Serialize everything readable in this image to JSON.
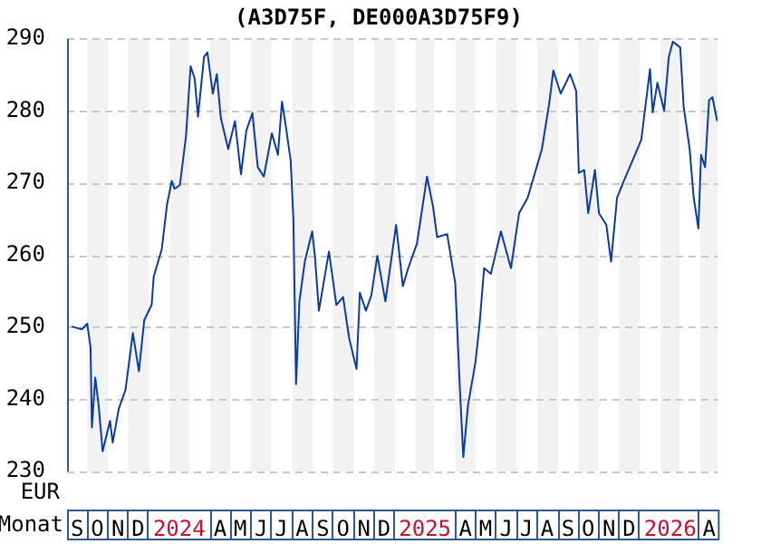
{
  "chart_data": {
    "type": "line",
    "title": "(A3D75F, DE000A3D75F9)",
    "xlabel": "Monat",
    "ylabel": "EUR",
    "x": [
      "2023-09-08",
      "2023-09-23",
      "2023-10-01",
      "2023-10-06",
      "2023-10-08",
      "2023-10-13",
      "2023-10-18",
      "2023-10-24",
      "2023-11-04",
      "2023-11-08",
      "2023-11-17",
      "2023-11-27",
      "2023-12-08",
      "2023-12-17",
      "2023-12-25",
      "2024-01-05",
      "2024-01-08",
      "2024-01-20",
      "2024-01-28",
      "2024-02-04",
      "2024-02-08",
      "2024-02-16",
      "2024-02-25",
      "2024-03-03",
      "2024-03-09",
      "2024-03-14",
      "2024-03-23",
      "2024-03-28",
      "2024-04-05",
      "2024-04-11",
      "2024-04-17",
      "2024-04-28",
      "2024-05-08",
      "2024-05-17",
      "2024-05-25",
      "2024-06-03",
      "2024-06-11",
      "2024-06-20",
      "2024-07-02",
      "2024-07-11",
      "2024-07-17",
      "2024-07-23",
      "2024-07-30",
      "2024-08-03",
      "2024-08-07",
      "2024-08-12",
      "2024-08-20",
      "2024-08-31",
      "2024-09-04",
      "2024-09-10",
      "2024-09-25",
      "2024-10-06",
      "2024-10-16",
      "2024-10-25",
      "2024-11-05",
      "2024-11-10",
      "2024-11-19",
      "2024-11-27",
      "2024-12-06",
      "2024-12-18",
      "2025-01-03",
      "2025-01-13",
      "2025-01-21",
      "2025-02-03",
      "2025-02-18",
      "2025-02-27",
      "2025-03-05",
      "2025-03-20",
      "2025-04-01",
      "2025-04-08",
      "2025-04-13",
      "2025-04-20",
      "2025-05-01",
      "2025-05-07",
      "2025-05-14",
      "2025-05-24",
      "2025-06-08",
      "2025-06-23",
      "2025-07-05",
      "2025-07-18",
      "2025-08-08",
      "2025-08-19",
      "2025-08-25",
      "2025-09-05",
      "2025-09-19",
      "2025-09-28",
      "2025-10-02",
      "2025-10-10",
      "2025-10-16",
      "2025-10-26",
      "2025-11-01",
      "2025-11-12",
      "2025-11-19",
      "2025-11-28",
      "2025-12-09",
      "2025-12-21",
      "2026-01-03",
      "2026-01-16",
      "2026-01-20",
      "2026-01-27",
      "2026-02-06",
      "2026-02-13",
      "2026-02-19",
      "2026-03-02",
      "2026-03-07",
      "2026-03-16",
      "2026-03-22",
      "2026-03-29",
      "2026-04-02",
      "2026-04-08",
      "2026-04-14",
      "2026-04-19",
      "2026-04-26"
    ],
    "series": [
      {
        "color": "#0a3ca0",
        "values": [
          250.1,
          249.7,
          250.5,
          247.2,
          236.1,
          243,
          239.2,
          232.8,
          237,
          234,
          238.7,
          241.3,
          249.2,
          243.9,
          251,
          253.1,
          257,
          260.8,
          267.1,
          270.3,
          269.2,
          269.7,
          276.4,
          286.2,
          284.5,
          279.2,
          287.5,
          288.1,
          282.4,
          285.1,
          279,
          274.7,
          278.6,
          271.2,
          277.3,
          279.7,
          272.2,
          270.9,
          276.9,
          273.9,
          281.3,
          277.7,
          273.1,
          265,
          242.1,
          253.6,
          259.1,
          263.3,
          259.9,
          252.3,
          260.5,
          253.1,
          254.2,
          248.5,
          244.2,
          254.8,
          252.3,
          254.4,
          259.9,
          253.6,
          264.2,
          255.7,
          258.2,
          261.6,
          270.9,
          266.7,
          262.5,
          262.9,
          256.1,
          241.3,
          232,
          239.2,
          245.1,
          250.2,
          258.2,
          257.4,
          263.3,
          258.2,
          265.8,
          268,
          274.7,
          281.1,
          285.6,
          282.4,
          285.1,
          282.8,
          271.4,
          271.8,
          265.8,
          271.8,
          265.8,
          264.2,
          259.1,
          268,
          270.5,
          273.1,
          276,
          285.8,
          279.8,
          283.9,
          280,
          287.5,
          289.6,
          288.8,
          280.7,
          274.7,
          268,
          263.7,
          273.9,
          272.2,
          281.5,
          281.9,
          278.6
        ]
      }
    ],
    "xlim": [
      "2023-09-01",
      "2026-04-27"
    ],
    "xticks": [
      {
        "value": "2023-09-16",
        "label": "S"
      },
      {
        "value": "2023-10-16",
        "label": "O"
      },
      {
        "value": "2023-11-16",
        "label": "N"
      },
      {
        "value": "2023-12-16",
        "label": "D"
      },
      {
        "value": "2024-02-15",
        "label": "2024"
      },
      {
        "value": "2024-04-16",
        "label": "A"
      },
      {
        "value": "2024-05-16",
        "label": "M"
      },
      {
        "value": "2024-06-16",
        "label": "J"
      },
      {
        "value": "2024-07-16",
        "label": "J"
      },
      {
        "value": "2024-08-16",
        "label": "A"
      },
      {
        "value": "2024-09-16",
        "label": "S"
      },
      {
        "value": "2024-10-16",
        "label": "O"
      },
      {
        "value": "2024-11-16",
        "label": "N"
      },
      {
        "value": "2024-12-16",
        "label": "D"
      },
      {
        "value": "2025-02-15",
        "label": "2025"
      },
      {
        "value": "2025-04-16",
        "label": "A"
      },
      {
        "value": "2025-05-16",
        "label": "M"
      },
      {
        "value": "2025-06-16",
        "label": "J"
      },
      {
        "value": "2025-07-16",
        "label": "J"
      },
      {
        "value": "2025-08-16",
        "label": "A"
      },
      {
        "value": "2025-09-16",
        "label": "S"
      },
      {
        "value": "2025-10-16",
        "label": "O"
      },
      {
        "value": "2025-11-16",
        "label": "N"
      },
      {
        "value": "2025-12-16",
        "label": "D"
      },
      {
        "value": "2026-02-15",
        "label": "2026"
      },
      {
        "value": "2026-04-14",
        "label": "A"
      }
    ],
    "ylim": [
      230,
      290
    ],
    "yticks": [
      230,
      240,
      250,
      260,
      270,
      280,
      290
    ],
    "grid": "y",
    "bands": [
      {
        "axis": "x",
        "from": "2023-10-01",
        "to": "2023-11-01",
        "color": "#f2f2f2"
      },
      {
        "axis": "x",
        "from": "2023-12-01",
        "to": "2024-01-01",
        "color": "#f2f2f2"
      },
      {
        "axis": "x",
        "from": "2024-02-01",
        "to": "2024-03-01",
        "color": "#f2f2f2"
      },
      {
        "axis": "x",
        "from": "2024-04-01",
        "to": "2024-05-01",
        "color": "#f2f2f2"
      },
      {
        "axis": "x",
        "from": "2024-06-01",
        "to": "2024-07-01",
        "color": "#f2f2f2"
      },
      {
        "axis": "x",
        "from": "2024-08-01",
        "to": "2024-09-01",
        "color": "#f2f2f2"
      },
      {
        "axis": "x",
        "from": "2024-10-01",
        "to": "2024-11-01",
        "color": "#f2f2f2"
      },
      {
        "axis": "x",
        "from": "2024-12-01",
        "to": "2025-01-01",
        "color": "#f2f2f2"
      },
      {
        "axis": "x",
        "from": "2025-02-01",
        "to": "2025-03-01",
        "color": "#f2f2f2"
      },
      {
        "axis": "x",
        "from": "2025-04-01",
        "to": "2025-05-01",
        "color": "#f2f2f2"
      },
      {
        "axis": "x",
        "from": "2025-06-01",
        "to": "2025-07-01",
        "color": "#f2f2f2"
      },
      {
        "axis": "x",
        "from": "2025-08-01",
        "to": "2025-09-01",
        "color": "#f2f2f2"
      },
      {
        "axis": "x",
        "from": "2025-10-01",
        "to": "2025-11-01",
        "color": "#f2f2f2"
      },
      {
        "axis": "x",
        "from": "2025-12-01",
        "to": "2026-01-01",
        "color": "#f2f2f2"
      },
      {
        "axis": "x",
        "from": "2026-02-01",
        "to": "2026-03-01",
        "color": "#f2f2f2"
      },
      {
        "axis": "x",
        "from": "2026-04-01",
        "to": "2026-04-27",
        "color": "#f2f2f2"
      }
    ]
  }
}
